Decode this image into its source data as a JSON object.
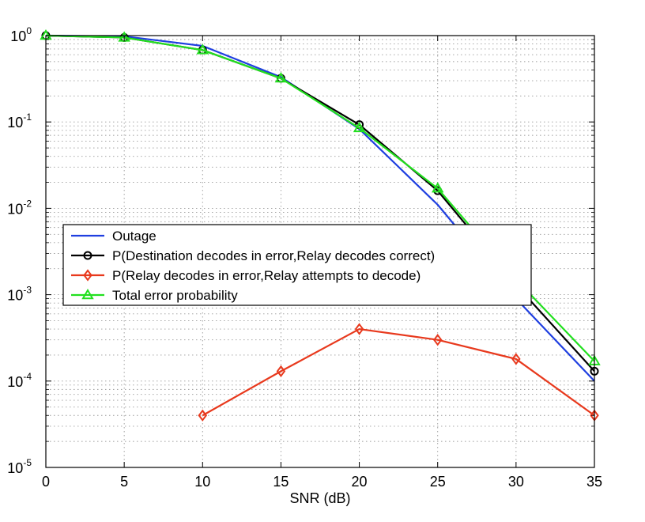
{
  "chart_data": {
    "type": "line",
    "title": "",
    "xlabel": "SNR (dB)",
    "ylabel": "",
    "x": [
      0,
      5,
      10,
      15,
      20,
      25,
      30,
      35
    ],
    "xlim": [
      0,
      35
    ],
    "ylim": [
      1e-05,
      1
    ],
    "yscale": "log",
    "grid": true,
    "legend_position": "center-left",
    "x_ticks": [
      "0",
      "5",
      "10",
      "15",
      "20",
      "25",
      "30",
      "35"
    ],
    "y_ticks": [
      {
        "base": "10",
        "exp": "0"
      },
      {
        "base": "10",
        "exp": "-1"
      },
      {
        "base": "10",
        "exp": "-2"
      },
      {
        "base": "10",
        "exp": "-3"
      },
      {
        "base": "10",
        "exp": "-4"
      },
      {
        "base": "10",
        "exp": "-5"
      }
    ],
    "series": [
      {
        "name": "Outage",
        "color": "#1f3fe0",
        "marker": "none",
        "x": [
          0,
          5,
          10,
          15,
          20,
          25,
          30,
          35
        ],
        "y": [
          1.0,
          0.98,
          0.76,
          0.33,
          0.083,
          0.011,
          0.0009,
          0.0001
        ]
      },
      {
        "name": "P(Destination decodes in error,Relay decodes correct)",
        "color": "#000000",
        "marker": "circle",
        "x": [
          0,
          5,
          10,
          15,
          20,
          25,
          30,
          35
        ],
        "y": [
          1.0,
          0.95,
          0.68,
          0.32,
          0.093,
          0.016,
          0.0013,
          0.00013
        ]
      },
      {
        "name": "P(Relay decodes in error,Relay attempts to decode)",
        "color": "#e8391d",
        "marker": "diamond",
        "x": [
          10,
          15,
          20,
          25,
          30,
          35
        ],
        "y": [
          4e-05,
          0.00013,
          0.0004,
          0.0003,
          0.00018,
          4e-05
        ]
      },
      {
        "name": "Total error probability",
        "color": "#22e01f",
        "marker": "triangle",
        "x": [
          0,
          5,
          10,
          15,
          20,
          25,
          30,
          35
        ],
        "y": [
          1.0,
          0.95,
          0.68,
          0.32,
          0.085,
          0.017,
          0.0015,
          0.00017
        ]
      }
    ]
  }
}
